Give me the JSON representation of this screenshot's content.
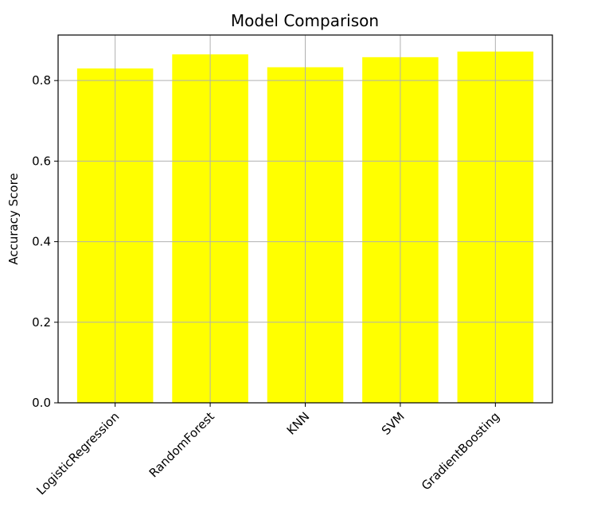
{
  "chart_data": {
    "type": "bar",
    "title": "Model Comparison",
    "xlabel": "",
    "ylabel": "Accuracy Score",
    "categories": [
      "LogisticRegression",
      "RandomForest",
      "KNN",
      "SVM",
      "GradientBoosting"
    ],
    "values": [
      0.83,
      0.865,
      0.833,
      0.858,
      0.872
    ],
    "ylim": [
      0,
      0.913
    ],
    "yticks": [
      "0.0",
      "0.2",
      "0.4",
      "0.6",
      "0.8"
    ],
    "ytick_values": [
      0.0,
      0.2,
      0.4,
      0.6,
      0.8
    ],
    "grid": true,
    "bar_color": "#ffff00",
    "grid_color": "#b0b0b0"
  }
}
